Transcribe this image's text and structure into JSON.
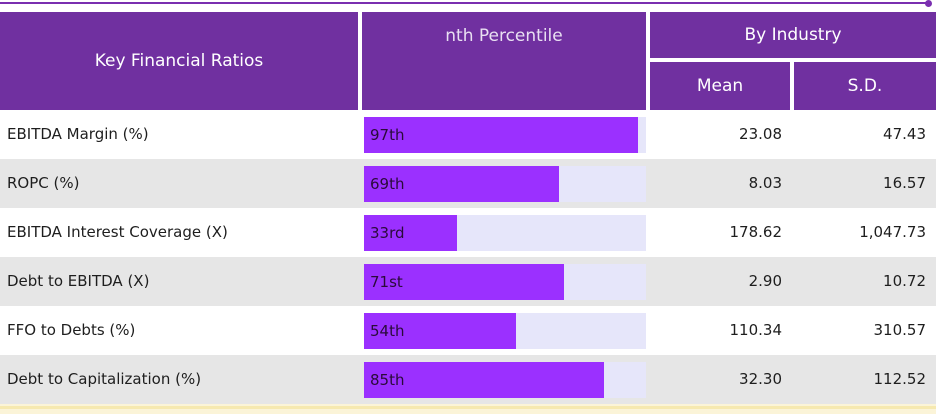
{
  "header": {
    "ratios_label": "Key Financial Ratios",
    "percentile_label": "nth Percentile",
    "industry_label": "By Industry",
    "mean_label": "Mean",
    "sd_label": "S.D."
  },
  "rows": [
    {
      "label": "EBITDA Margin (%)",
      "percentile_text": "97th",
      "percentile": 97,
      "mean": "23.08",
      "sd": "47.43"
    },
    {
      "label": "ROPC (%)",
      "percentile_text": "69th",
      "percentile": 69,
      "mean": "8.03",
      "sd": "16.57"
    },
    {
      "label": "EBITDA Interest Coverage (X)",
      "percentile_text": "33rd",
      "percentile": 33,
      "mean": "178.62",
      "sd": "1,047.73"
    },
    {
      "label": "Debt to EBITDA (X)",
      "percentile_text": "71st",
      "percentile": 71,
      "mean": "2.90",
      "sd": "10.72"
    },
    {
      "label": "FFO to Debts (%)",
      "percentile_text": "54th",
      "percentile": 54,
      "mean": "110.34",
      "sd": "310.57"
    },
    {
      "label": "Debt to Capitalization (%)",
      "percentile_text": "85th",
      "percentile": 85,
      "mean": "32.30",
      "sd": "112.52"
    }
  ],
  "colors": {
    "header_bg": "#7030a0",
    "bar_fill": "#9b30ff",
    "bar_track": "#e6e6fa"
  }
}
